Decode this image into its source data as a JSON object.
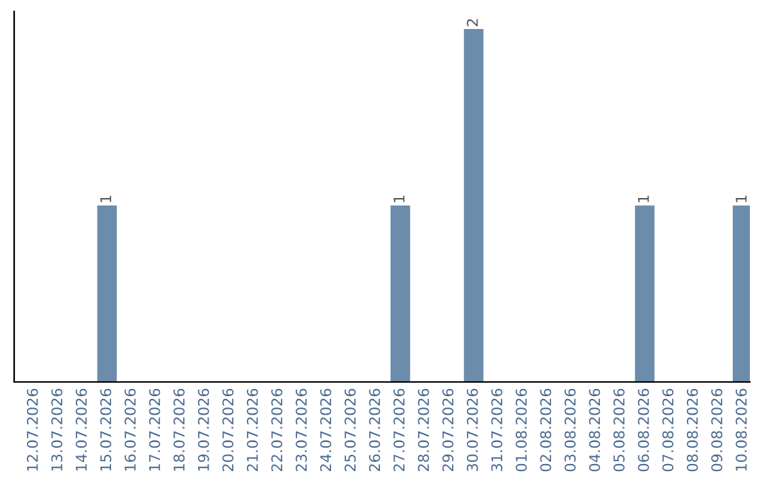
{
  "chart_data": {
    "type": "bar",
    "categories": [
      "12.07.2026",
      "13.07.2026",
      "14.07.2026",
      "15.07.2026",
      "16.07.2026",
      "17.07.2026",
      "18.07.2026",
      "19.07.2026",
      "20.07.2026",
      "21.07.2026",
      "22.07.2026",
      "23.07.2026",
      "24.07.2026",
      "25.07.2026",
      "26.07.2026",
      "27.07.2026",
      "28.07.2026",
      "29.07.2026",
      "30.07.2026",
      "31.07.2026",
      "01.08.2026",
      "02.08.2026",
      "03.08.2026",
      "04.08.2026",
      "05.08.2026",
      "06.08.2026",
      "07.08.2026",
      "08.08.2026",
      "09.08.2026",
      "10.08.2026"
    ],
    "values": [
      0,
      0,
      0,
      1,
      0,
      0,
      0,
      0,
      0,
      0,
      0,
      0,
      0,
      0,
      0,
      1,
      0,
      0,
      2,
      0,
      0,
      0,
      0,
      0,
      0,
      1,
      0,
      0,
      0,
      1
    ],
    "value_labels": [
      null,
      null,
      null,
      "1",
      null,
      null,
      null,
      null,
      null,
      null,
      null,
      null,
      null,
      null,
      null,
      "1",
      null,
      null,
      "2",
      null,
      null,
      null,
      null,
      null,
      null,
      "1",
      null,
      null,
      null,
      "1"
    ],
    "color": "#6b8caa",
    "ylim": [
      0,
      2.1
    ],
    "tick_labels": "x",
    "grid": false,
    "legend": false
  }
}
